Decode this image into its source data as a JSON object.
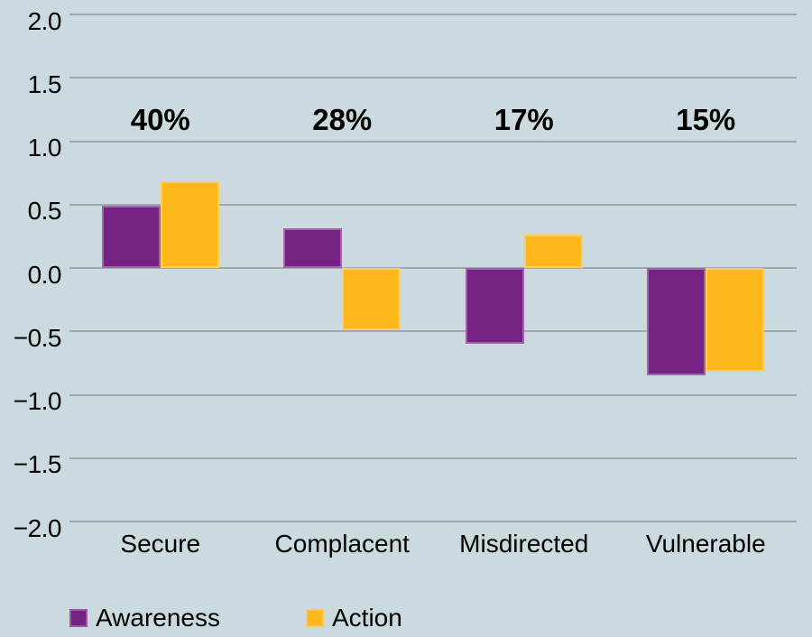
{
  "chart_data": {
    "type": "bar",
    "categories": [
      "Secure",
      "Complacent",
      "Misdirected",
      "Vulnerable"
    ],
    "series": [
      {
        "name": "Awareness",
        "color": "#762284",
        "values": [
          0.49,
          0.31,
          -0.6,
          -0.85
        ]
      },
      {
        "name": "Action",
        "color": "#fcb71b",
        "values": [
          0.68,
          -0.49,
          0.26,
          -0.82
        ]
      }
    ],
    "group_value_labels": [
      "40%",
      "28%",
      "17%",
      "15%"
    ],
    "title": "",
    "xlabel": "",
    "ylabel": "",
    "ylim": [
      -2.0,
      2.0
    ],
    "ytick_step": 0.5,
    "ytick_labels": [
      "2.0",
      "1.5",
      "1.0",
      "0.5",
      "0.0",
      "−0.5",
      "−1.0",
      "−1.5",
      "−2.0"
    ],
    "grid": true,
    "legend_position": "bottom",
    "colors": {
      "background": "#cadadf",
      "gridline": "#9dabaf",
      "text": "#000000"
    }
  }
}
